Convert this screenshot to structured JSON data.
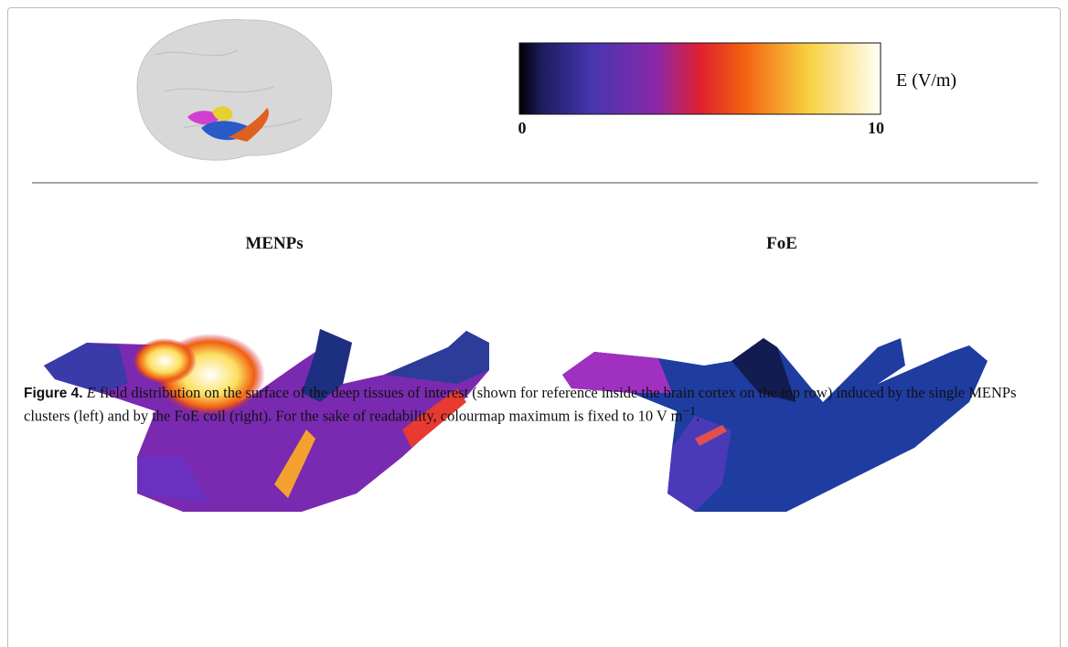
{
  "figure": {
    "colorbar": {
      "label": "E (V/m)",
      "min": 0,
      "max": 10
    },
    "panels": [
      "MENPs",
      "FoE"
    ],
    "caption": {
      "number": "Figure 4.",
      "symbol": "E",
      "text": " field distribution on the surface of the deep tissues of interest (shown for reference inside the brain cortex on the top row) induced by the single MENPs clusters (left) and by the FoE coil (right). For the sake of readability, colourmap maximum is fixed to 10 V m",
      "superscript": "−1",
      "end": "."
    }
  }
}
